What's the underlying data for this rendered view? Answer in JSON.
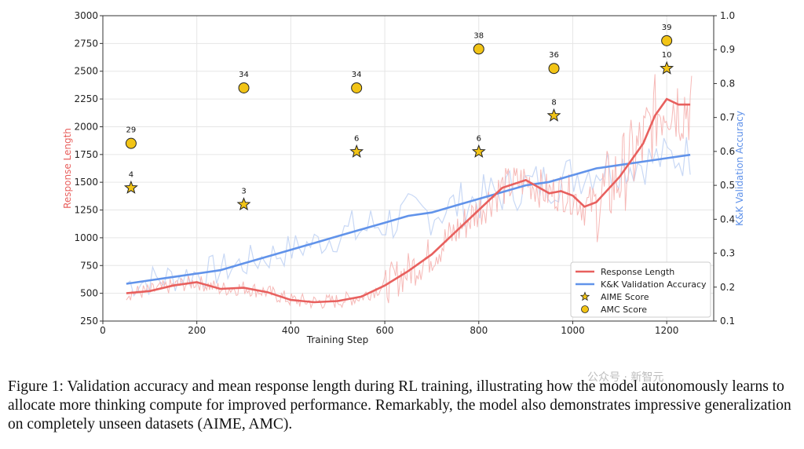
{
  "caption": "Figure 1: Validation accuracy and mean response length during RL training, illustrating how the model autonomously learns to allocate more thinking compute for improved performance. Remarkably, the model also demonstrates impressive generalization on completely unseen datasets (AIME, AMC).",
  "watermark": "公众号 · 新智元",
  "colors": {
    "response_length": "#e8605e",
    "response_length_raw": "#f6b8b6",
    "kk_accuracy": "#6193ea",
    "kk_accuracy_raw": "#c8d8f5",
    "marker_fill": "#f2c416",
    "grid": "#e6e6e6"
  },
  "chart_data": {
    "type": "line",
    "xlabel": "Training Step",
    "ylabel": "Response Length",
    "y2label": "K&K Validation Accuracy",
    "xlim": [
      0,
      1300
    ],
    "ylim": [
      250,
      3000
    ],
    "y2lim": [
      0.1,
      1.0
    ],
    "x_ticks": [
      0,
      200,
      400,
      600,
      800,
      1000,
      1200
    ],
    "y_ticks": [
      250,
      500,
      750,
      1000,
      1250,
      1500,
      1750,
      2000,
      2250,
      2500,
      2750,
      3000
    ],
    "y2_ticks": [
      0.1,
      0.2,
      0.3,
      0.4,
      0.5,
      0.6,
      0.7,
      0.8,
      0.9,
      1.0
    ],
    "grid": true,
    "legend_position": "bottom-right",
    "series": [
      {
        "name": "Response Length",
        "axis": "left",
        "x": [
          50,
          100,
          150,
          200,
          250,
          300,
          350,
          400,
          450,
          500,
          550,
          600,
          650,
          700,
          750,
          800,
          850,
          900,
          950,
          975,
          1000,
          1025,
          1050,
          1100,
          1125,
          1150,
          1175,
          1200,
          1225,
          1250
        ],
        "values": [
          500,
          520,
          570,
          600,
          540,
          550,
          510,
          440,
          420,
          430,
          470,
          570,
          700,
          850,
          1050,
          1250,
          1450,
          1520,
          1400,
          1420,
          1380,
          1280,
          1320,
          1550,
          1700,
          1850,
          2100,
          2250,
          2200,
          2200
        ]
      },
      {
        "name": "K&K Validation Accuracy",
        "axis": "right",
        "x": [
          50,
          100,
          150,
          200,
          250,
          300,
          350,
          400,
          450,
          500,
          550,
          600,
          650,
          700,
          750,
          800,
          850,
          900,
          950,
          1000,
          1050,
          1100,
          1150,
          1200,
          1250
        ],
        "values": [
          0.21,
          0.22,
          0.23,
          0.24,
          0.25,
          0.27,
          0.29,
          0.31,
          0.33,
          0.35,
          0.37,
          0.39,
          0.41,
          0.42,
          0.44,
          0.46,
          0.48,
          0.5,
          0.51,
          0.53,
          0.55,
          0.56,
          0.57,
          0.58,
          0.59
        ]
      },
      {
        "name": "AIME Score",
        "axis": "left",
        "marker": "star",
        "x": [
          60,
          300,
          540,
          800,
          960,
          1200
        ],
        "values": [
          1450,
          1300,
          1775,
          1775,
          2100,
          2525
        ],
        "labels": [
          "4",
          "3",
          "6",
          "6",
          "8",
          "10"
        ]
      },
      {
        "name": "AMC Score",
        "axis": "left",
        "marker": "circle",
        "x": [
          60,
          300,
          540,
          800,
          960,
          1200
        ],
        "values": [
          1850,
          2350,
          2350,
          2700,
          2525,
          2775
        ],
        "labels": [
          "29",
          "34",
          "34",
          "38",
          "36",
          "39"
        ]
      }
    ]
  }
}
